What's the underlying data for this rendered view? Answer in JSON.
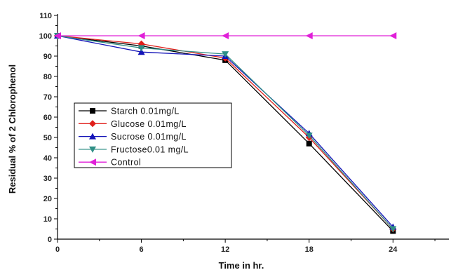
{
  "chart_data": {
    "type": "line",
    "xlabel": "Time in hr.",
    "ylabel": "Residual % of 2 Chlorophenol",
    "xlim": [
      0,
      28
    ],
    "ylim": [
      0,
      110
    ],
    "x_ticks": [
      0,
      6,
      12,
      18,
      24
    ],
    "y_ticks": [
      0,
      10,
      20,
      30,
      40,
      50,
      60,
      70,
      80,
      90,
      100,
      110
    ],
    "grid": false,
    "legend_position": "middle-left",
    "x": [
      0,
      6,
      12,
      18,
      24
    ],
    "series": [
      {
        "name": "Starch  0.01mg/L",
        "values": [
          100,
          95,
          88,
          47,
          4
        ],
        "color": "#000000",
        "marker": "square"
      },
      {
        "name": "Glucose 0.01mg/L",
        "values": [
          100,
          96,
          89,
          50,
          5
        ],
        "color": "#e0201b",
        "marker": "diamond"
      },
      {
        "name": "Sucrose 0.01mg/L",
        "values": [
          100,
          92,
          90,
          52,
          6
        ],
        "color": "#1414b8",
        "marker": "triangle-up"
      },
      {
        "name": "Fructose0.01 mg/L",
        "values": [
          100,
          94,
          91,
          51,
          5
        ],
        "color": "#2f8f86",
        "marker": "triangle-down"
      },
      {
        "name": "Control",
        "values": [
          100,
          100,
          100,
          100,
          100
        ],
        "color": "#e020d8",
        "marker": "triangle-left"
      }
    ]
  }
}
